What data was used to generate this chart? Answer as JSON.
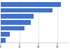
{
  "values": [
    32.1,
    27.3,
    17.6,
    16.1,
    12.8,
    4.8,
    2.5
  ],
  "bar_color": "#4472c4",
  "background_color": "#ffffff",
  "grid_color": "#cccccc",
  "xlim": [
    0,
    36
  ],
  "bar_height": 0.78,
  "figsize": [
    1.0,
    0.71
  ],
  "dpi": 100
}
